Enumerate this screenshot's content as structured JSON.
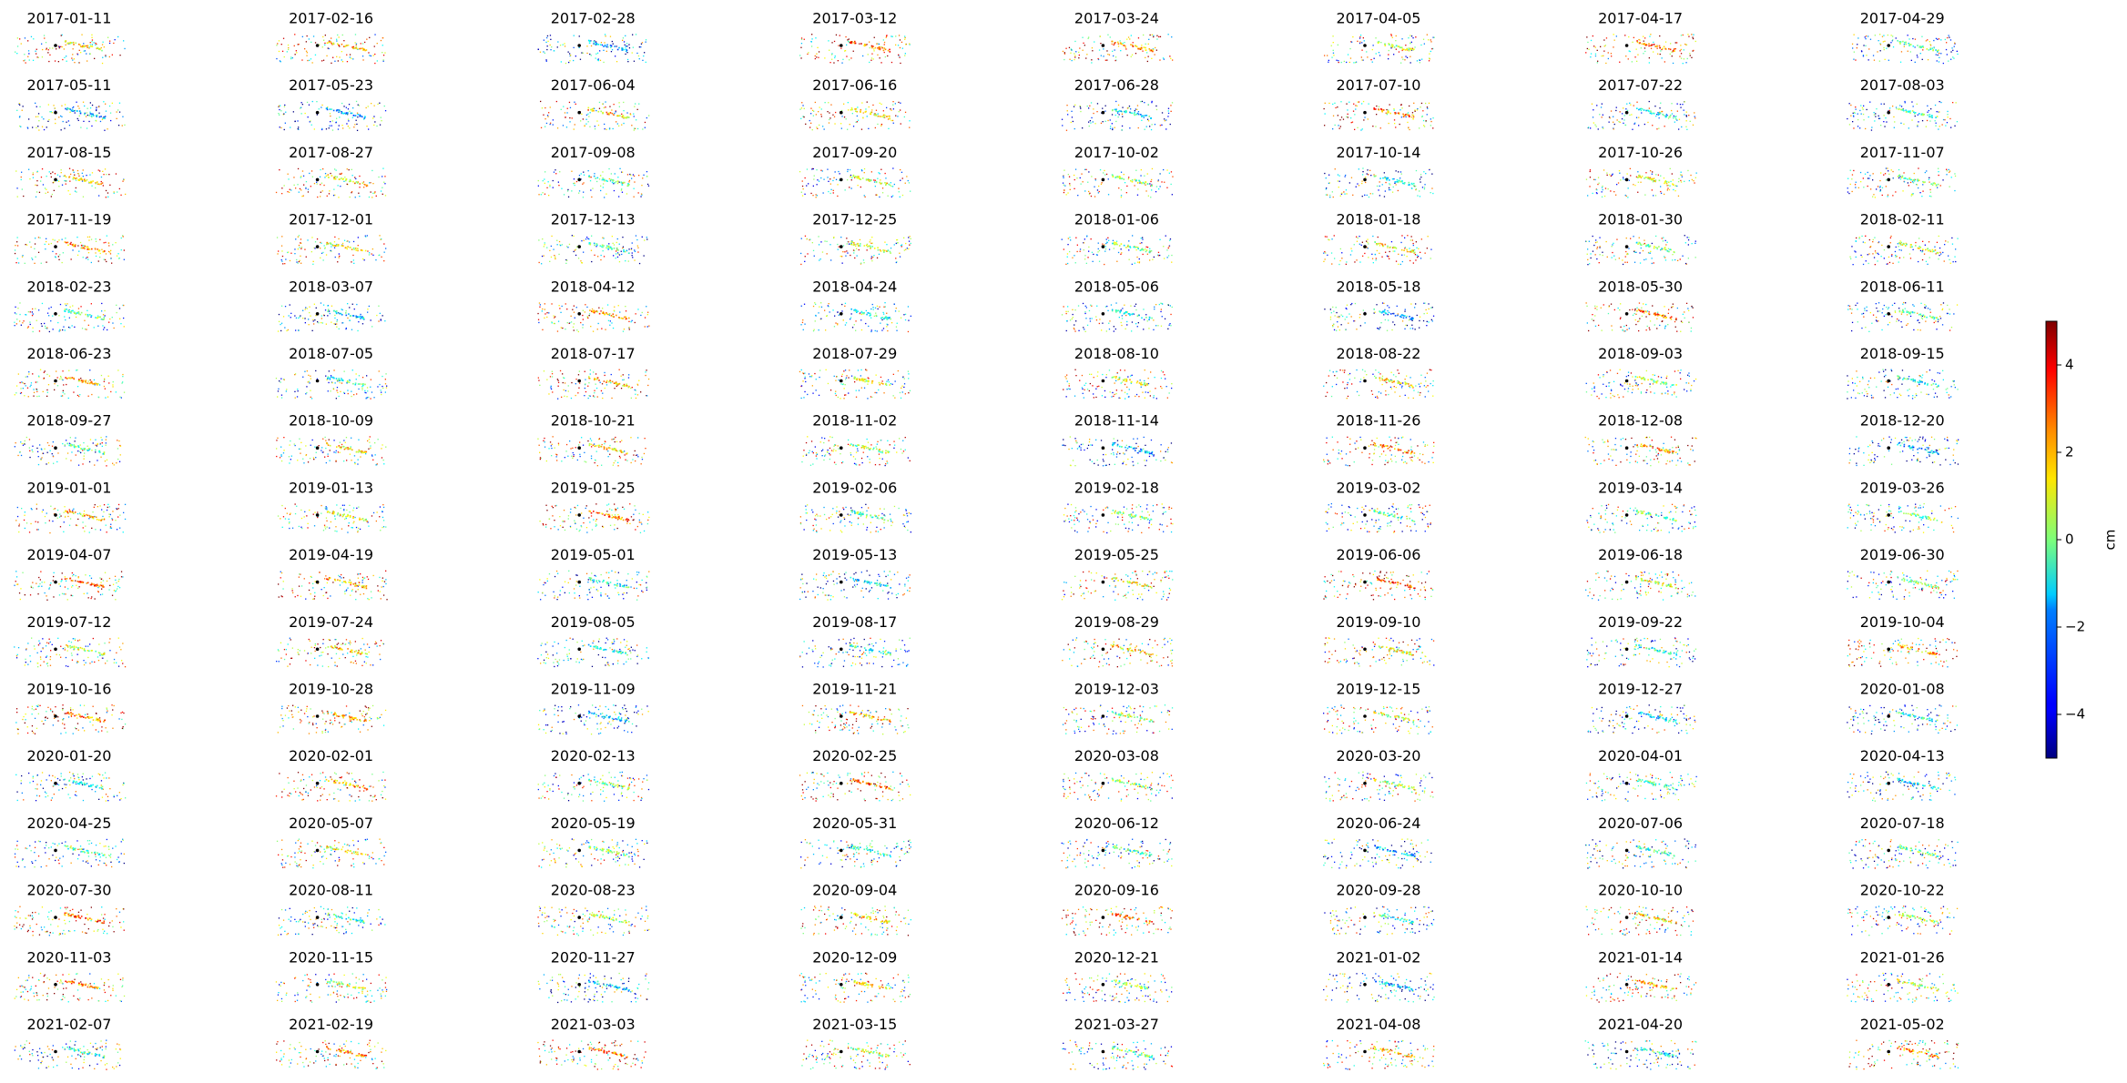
{
  "chart_data": {
    "type": "scatter-map-grid",
    "panels": [
      "2017-01-11",
      "2017-02-16",
      "2017-02-28",
      "2017-03-12",
      "2017-03-24",
      "2017-04-05",
      "2017-04-17",
      "2017-04-29",
      "2017-05-11",
      "2017-05-23",
      "2017-06-04",
      "2017-06-16",
      "2017-06-28",
      "2017-07-10",
      "2017-07-22",
      "2017-08-03",
      "2017-08-15",
      "2017-08-27",
      "2017-09-08",
      "2017-09-20",
      "2017-10-02",
      "2017-10-14",
      "2017-10-26",
      "2017-11-07",
      "2017-11-19",
      "2017-12-01",
      "2017-12-13",
      "2017-12-25",
      "2018-01-06",
      "2018-01-18",
      "2018-01-30",
      "2018-02-11",
      "2018-02-23",
      "2018-03-07",
      "2018-04-12",
      "2018-04-24",
      "2018-05-06",
      "2018-05-18",
      "2018-05-30",
      "2018-06-11",
      "2018-06-23",
      "2018-07-05",
      "2018-07-17",
      "2018-07-29",
      "2018-08-10",
      "2018-08-22",
      "2018-09-03",
      "2018-09-15",
      "2018-09-27",
      "2018-10-09",
      "2018-10-21",
      "2018-11-02",
      "2018-11-14",
      "2018-11-26",
      "2018-12-08",
      "2018-12-20",
      "2019-01-01",
      "2019-01-13",
      "2019-01-25",
      "2019-02-06",
      "2019-02-18",
      "2019-03-02",
      "2019-03-14",
      "2019-03-26",
      "2019-04-07",
      "2019-04-19",
      "2019-05-01",
      "2019-05-13",
      "2019-05-25",
      "2019-06-06",
      "2019-06-18",
      "2019-06-30",
      "2019-07-12",
      "2019-07-24",
      "2019-08-05",
      "2019-08-17",
      "2019-08-29",
      "2019-09-10",
      "2019-09-22",
      "2019-10-04",
      "2019-10-16",
      "2019-10-28",
      "2019-11-09",
      "2019-11-21",
      "2019-12-03",
      "2019-12-15",
      "2019-12-27",
      "2020-01-08",
      "2020-01-20",
      "2020-02-01",
      "2020-02-13",
      "2020-02-25",
      "2020-03-08",
      "2020-03-20",
      "2020-04-01",
      "2020-04-13",
      "2020-04-25",
      "2020-05-07",
      "2020-05-19",
      "2020-05-31",
      "2020-06-12",
      "2020-06-24",
      "2020-07-06",
      "2020-07-18",
      "2020-07-30",
      "2020-08-11",
      "2020-08-23",
      "2020-09-04",
      "2020-09-16",
      "2020-09-28",
      "2020-10-10",
      "2020-10-22",
      "2020-11-03",
      "2020-11-15",
      "2020-11-27",
      "2020-12-09",
      "2020-12-21",
      "2021-01-02",
      "2021-01-14",
      "2021-01-26",
      "2021-02-07",
      "2021-02-19",
      "2021-03-03",
      "2021-03-15",
      "2021-03-27",
      "2021-04-08",
      "2021-04-20",
      "2021-05-02"
    ],
    "colorbar": {
      "label": "cm",
      "lim": [
        -5,
        5
      ],
      "colormap": "jet",
      "ticks": [
        {
          "value": -4,
          "label": "−4"
        },
        {
          "value": -2,
          "label": "−2"
        },
        0,
        2,
        4
      ]
    }
  }
}
